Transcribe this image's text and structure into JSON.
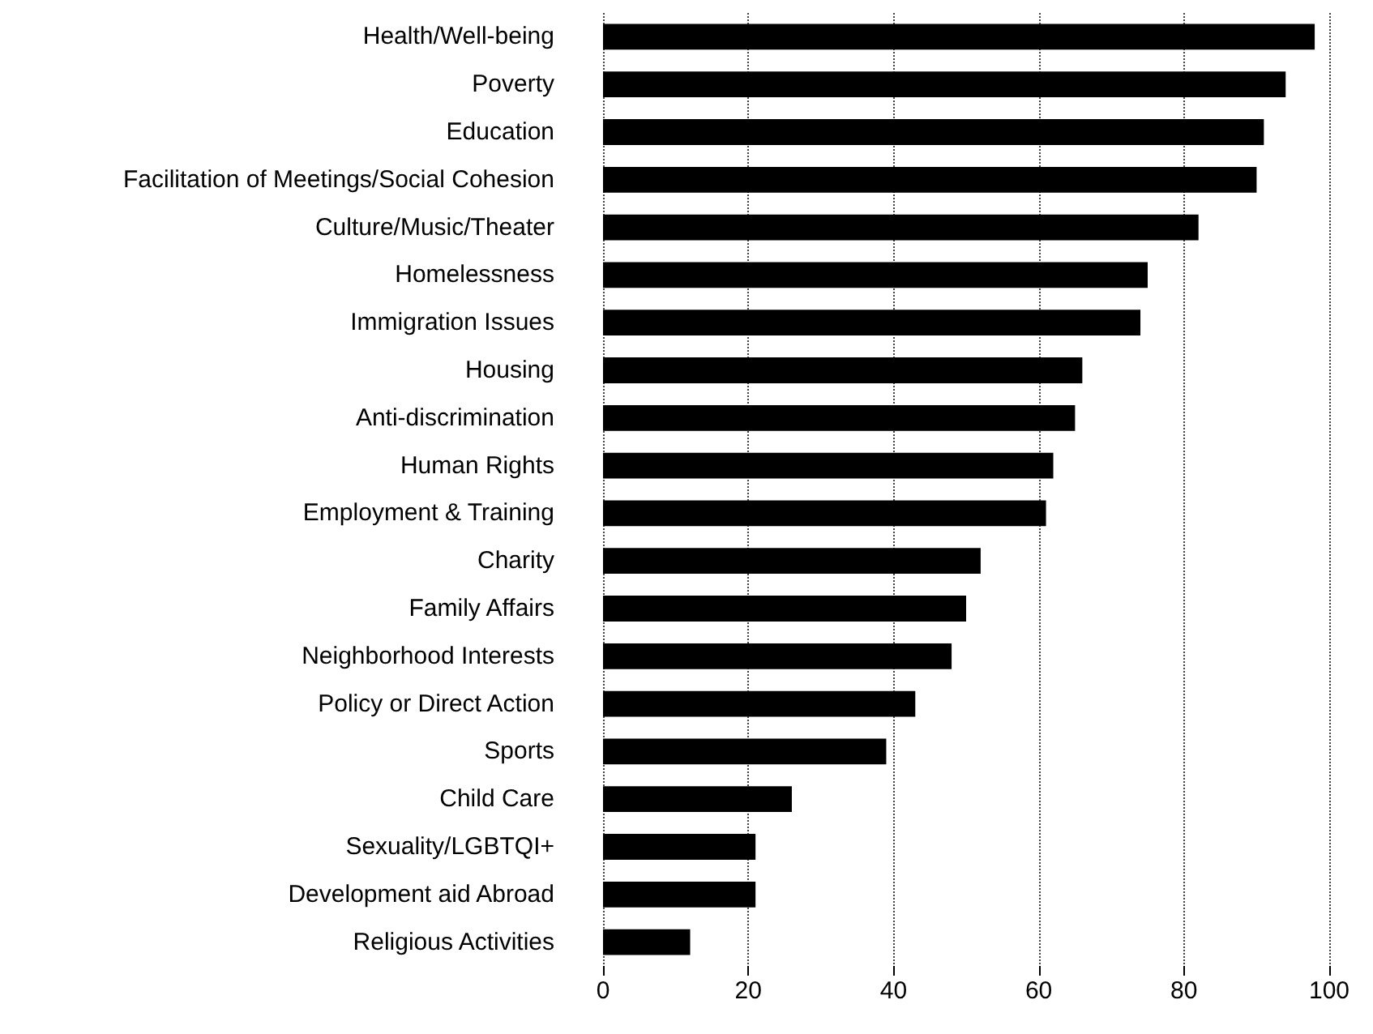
{
  "chart_data": {
    "type": "bar",
    "orientation": "horizontal",
    "categories": [
      "Health/Well-being",
      "Poverty",
      "Education",
      "Facilitation of Meetings/Social Cohesion",
      "Culture/Music/Theater",
      "Homelessness",
      "Immigration Issues",
      "Housing",
      "Anti-discrimination",
      "Human Rights",
      "Employment & Training",
      "Charity",
      "Family Affairs",
      "Neighborhood Interests",
      "Policy or Direct Action",
      "Sports",
      "Child Care",
      "Sexuality/LGBTQI+",
      "Development aid Abroad",
      "Religious Activities"
    ],
    "values": [
      98,
      94,
      91,
      90,
      82,
      75,
      74,
      66,
      65,
      62,
      61,
      52,
      50,
      48,
      43,
      39,
      26,
      21,
      21,
      12
    ],
    "color": "#000000",
    "xlim": [
      0,
      100
    ],
    "xticks": [
      0,
      20,
      40,
      60,
      80,
      100
    ],
    "grid": "x"
  }
}
